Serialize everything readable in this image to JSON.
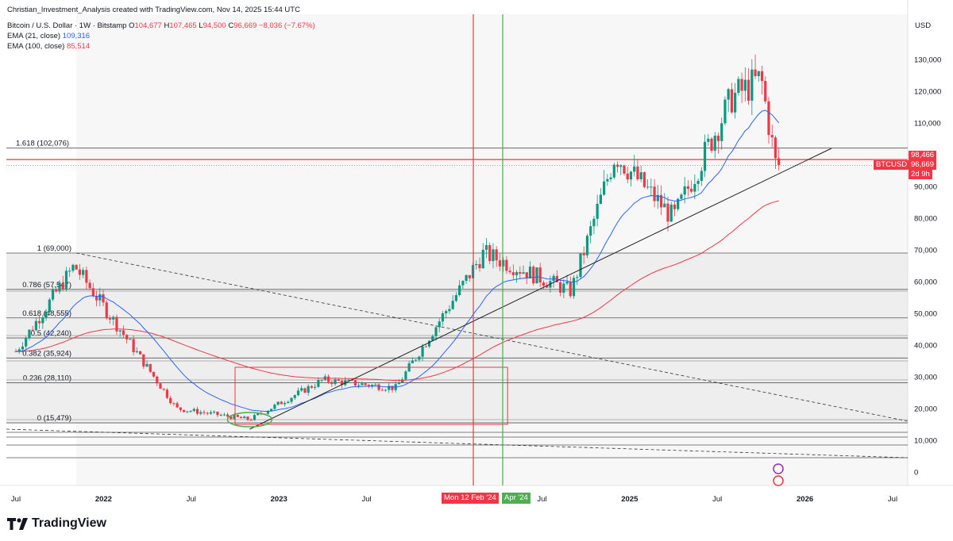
{
  "credit": "Christian_Investment_Analysis created with TradingView.com, Nov 14, 2025 15:44 UTC",
  "symbol_line": {
    "name": "Bitcoin / U.S. Dollar · 1W · Bitstamp",
    "o_label": "O",
    "o_value": "104,677",
    "h_label": "H",
    "h_value": "107,465",
    "l_label": "L",
    "l_value": "94,500",
    "c_label": "C",
    "c_value": "96,669",
    "change": "−8,036 (−7.67%)"
  },
  "indicators": [
    {
      "label": "EMA (21, close)",
      "value": "109,316",
      "color": "#2962ff"
    },
    {
      "label": "EMA (100, close)",
      "value": "85,514",
      "color": "#f23645"
    }
  ],
  "price_axis": {
    "currency": "USD",
    "ticks": [
      "130,000",
      "120,000",
      "110,000",
      "100,000",
      "90,000",
      "80,000",
      "70,000",
      "60,000",
      "50,000",
      "40,000",
      "30,000",
      "20,000",
      "10,000",
      "0"
    ]
  },
  "time_axis": {
    "ticks": [
      "Jul",
      "2022",
      "Jul",
      "2023",
      "Jul",
      "Jul",
      "2025",
      "Jul",
      "2026",
      "Jul"
    ]
  },
  "price_tags": {
    "level_tag": "98,466",
    "symbol_tag": "BTCUSD",
    "last_price": "96,669",
    "countdown": "2d 9h"
  },
  "date_tags": {
    "red": "Mon 12 Feb '24",
    "green": "Apr '24"
  },
  "fib_levels": [
    {
      "label": "1.618 (102,076)",
      "price": 102076
    },
    {
      "label": "1 (69,000)",
      "price": 69000
    },
    {
      "label": "0.786 (57,547)",
      "price": 57547
    },
    {
      "label": "0.618 (48,555)",
      "price": 48555
    },
    {
      "label": "0.5 (42,240)",
      "price": 42240
    },
    {
      "label": "0.382 (35,924)",
      "price": 35924
    },
    {
      "label": "0.236 (28,110)",
      "price": 28110
    },
    {
      "label": "0 (15,479)",
      "price": 15479
    }
  ],
  "logo_text": "TradingView",
  "colors": {
    "up": "#089981",
    "down": "#f23645",
    "ema21": "#2962ff",
    "ema100": "#f23645",
    "green_line": "#4caf50"
  },
  "chart_data": {
    "type": "candlestick",
    "symbol": "BTCUSD",
    "timeframe": "1W",
    "ylim": [
      0,
      135000
    ],
    "anchors": [
      {
        "date": "2021-07",
        "close": 38000
      },
      {
        "date": "2021-11",
        "close": 65000
      },
      {
        "date": "2022-06",
        "close": 20000
      },
      {
        "date": "2022-11",
        "close": 16500
      },
      {
        "date": "2023-04",
        "close": 29000
      },
      {
        "date": "2023-09",
        "close": 26500
      },
      {
        "date": "2024-03",
        "close": 69000
      },
      {
        "date": "2024-09",
        "close": 57000
      },
      {
        "date": "2024-12",
        "close": 100000
      },
      {
        "date": "2025-04",
        "close": 80000
      },
      {
        "date": "2025-08",
        "close": 118000
      },
      {
        "date": "2025-10",
        "close": 124000
      },
      {
        "date": "2025-11",
        "close": 96669
      }
    ],
    "ema21_last": 109316,
    "ema100_last": 85514,
    "horizontal_levels": [
      98466,
      96669
    ],
    "vertical_markers": [
      {
        "date": "2024-02-12",
        "color": "red"
      },
      {
        "date": "2024-04",
        "color": "green"
      }
    ]
  }
}
